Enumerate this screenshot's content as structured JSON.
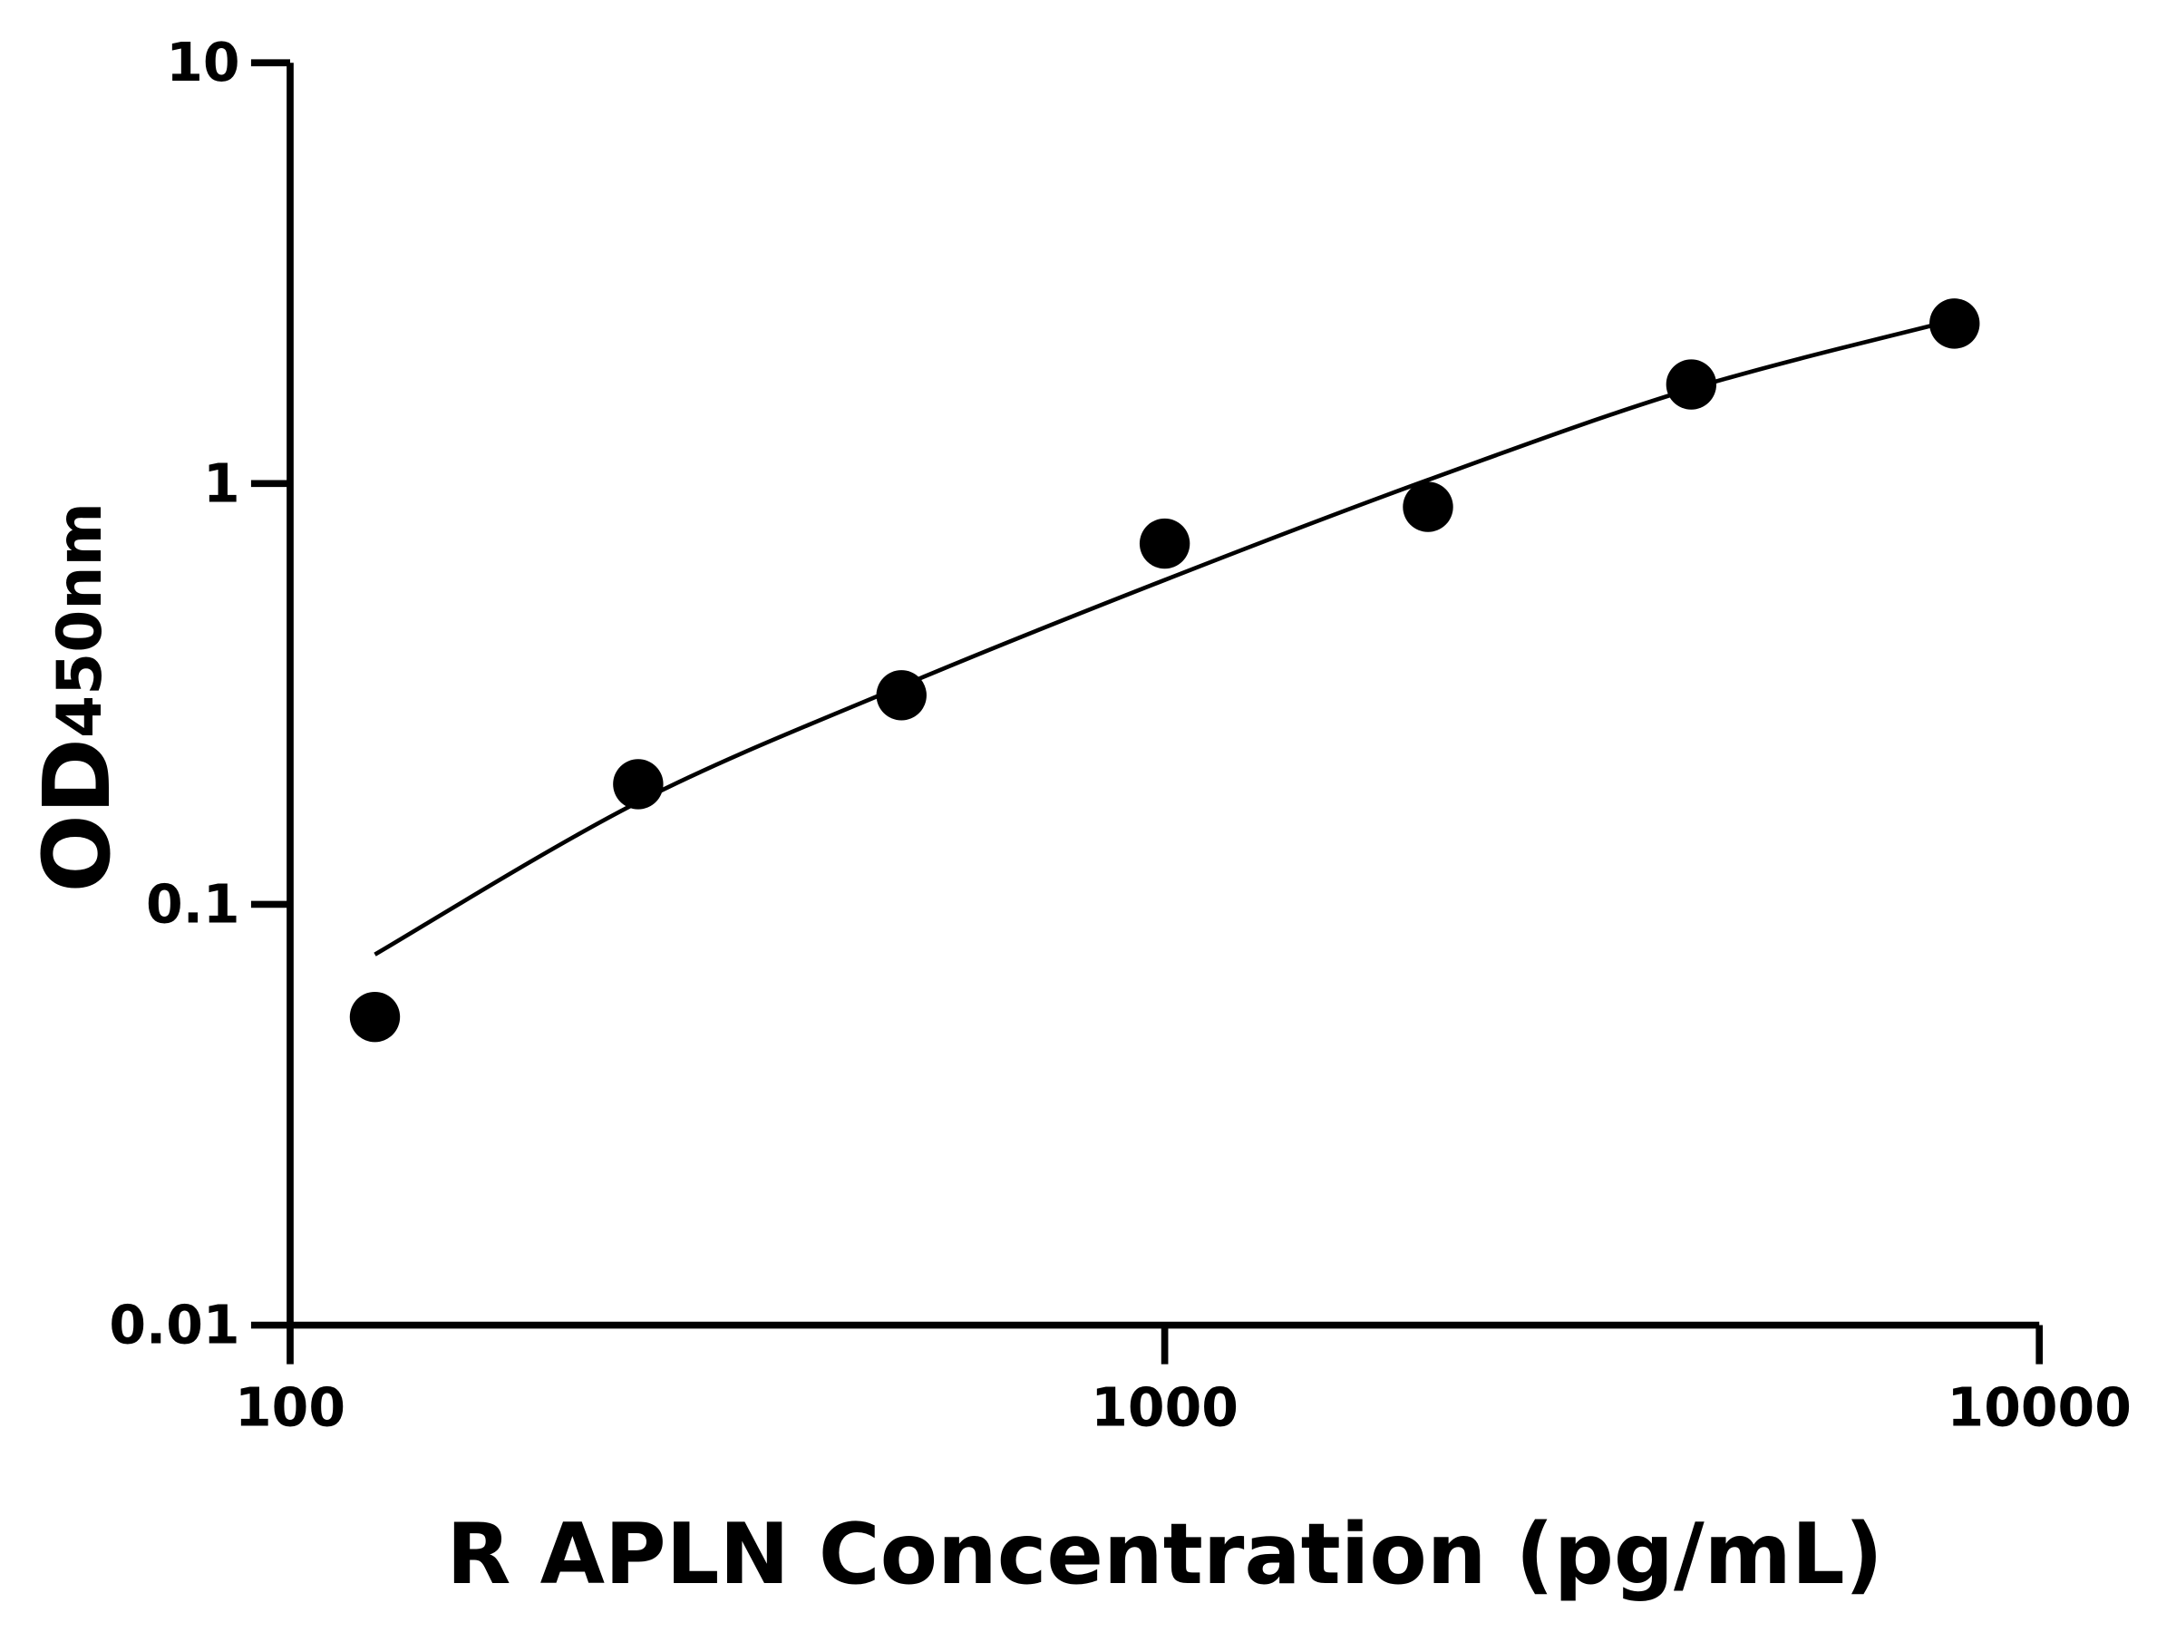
{
  "chart_data": {
    "type": "scatter",
    "title": "",
    "xlabel": "R APLN Concentration (pg/mL)",
    "ylabel_main": "OD",
    "ylabel_sub": "450nm",
    "x_scale": "log",
    "y_scale": "log",
    "xlim": [
      100,
      10000
    ],
    "ylim": [
      0.01,
      10
    ],
    "x_ticks": [
      100,
      1000,
      10000
    ],
    "x_tick_labels": [
      "100",
      "1000",
      "10000"
    ],
    "y_ticks": [
      0.01,
      0.1,
      1,
      10
    ],
    "y_tick_labels": [
      "0.01",
      "0.1",
      "1",
      "10"
    ],
    "grid": false,
    "legend": "none",
    "points": {
      "x": [
        125,
        250,
        500,
        1000,
        2000,
        4000,
        8000
      ],
      "y": [
        0.054,
        0.193,
        0.314,
        0.72,
        0.88,
        1.72,
        2.4
      ]
    },
    "fit_curve": {
      "x": [
        125,
        250,
        500,
        1000,
        2000,
        4000,
        8000
      ],
      "y": [
        0.076,
        0.175,
        0.33,
        0.59,
        1.02,
        1.68,
        2.45
      ]
    },
    "color": "#000000"
  }
}
